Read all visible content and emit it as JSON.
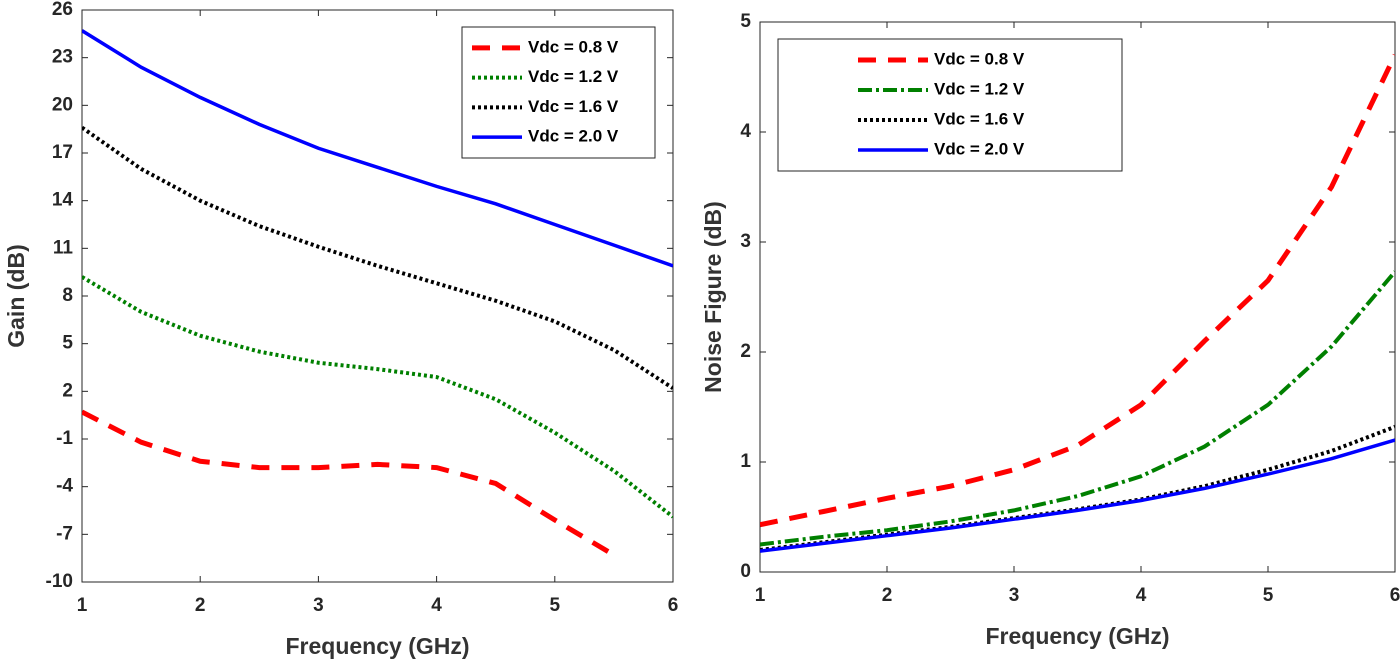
{
  "chart_data": [
    {
      "type": "line",
      "xlabel": "Frequency (GHz)",
      "ylabel": "Gain (dB)",
      "x": [
        1,
        1.5,
        2,
        2.5,
        3,
        3.5,
        4,
        4.5,
        5,
        5.5,
        6
      ],
      "xlim": [
        1,
        6
      ],
      "xticks": [
        1,
        2,
        3,
        4,
        5,
        6
      ],
      "ylim": [
        -10,
        26
      ],
      "yticks": [
        -10,
        -7,
        -4,
        -1,
        2,
        5,
        8,
        11,
        14,
        17,
        20,
        23,
        26
      ],
      "legend": "upper right",
      "series": [
        {
          "name": "Vdc = 0.8 V",
          "color": "#ff0000",
          "linestyle": "dashed",
          "values": [
            0.7,
            -1.2,
            -2.4,
            -2.8,
            -2.8,
            -2.6,
            -2.8,
            -3.8,
            -6.1,
            -8.3,
            null
          ]
        },
        {
          "name": "Vdc = 1.2 V",
          "color": "#008000",
          "linestyle": "dotted",
          "values": [
            9.2,
            7.0,
            5.5,
            4.5,
            3.8,
            3.4,
            2.9,
            1.5,
            -0.6,
            -3.0,
            -5.9
          ]
        },
        {
          "name": "Vdc = 1.6 V",
          "color": "#000000",
          "linestyle": "dotted",
          "values": [
            18.6,
            16.0,
            14.0,
            12.4,
            11.1,
            9.9,
            8.8,
            7.7,
            6.4,
            4.6,
            2.2
          ]
        },
        {
          "name": "Vdc = 2.0 V",
          "color": "#0000ff",
          "linestyle": "solid",
          "values": [
            24.7,
            22.4,
            20.5,
            18.8,
            17.3,
            16.1,
            14.9,
            13.8,
            12.5,
            11.2,
            9.9
          ]
        }
      ]
    },
    {
      "type": "line",
      "xlabel": "Frequency (GHz)",
      "ylabel": "Noise Figure (dB)",
      "x": [
        1,
        1.5,
        2,
        2.5,
        3,
        3.5,
        4,
        4.5,
        5,
        5.5,
        6
      ],
      "xlim": [
        1,
        6
      ],
      "xticks": [
        1,
        2,
        3,
        4,
        5,
        6
      ],
      "ylim": [
        0,
        5
      ],
      "yticks": [
        0,
        1,
        2,
        3,
        4,
        5
      ],
      "legend": "upper left",
      "series": [
        {
          "name": "Vdc = 0.8 V",
          "color": "#ff0000",
          "linestyle": "dashed",
          "values": [
            0.43,
            0.55,
            0.67,
            0.78,
            0.93,
            1.15,
            1.52,
            2.1,
            2.65,
            3.5,
            4.7
          ]
        },
        {
          "name": "Vdc = 1.2 V",
          "color": "#008000",
          "linestyle": "dashdot",
          "values": [
            0.25,
            0.32,
            0.38,
            0.46,
            0.56,
            0.69,
            0.87,
            1.14,
            1.52,
            2.05,
            2.73
          ]
        },
        {
          "name": "Vdc = 1.6 V",
          "color": "#000000",
          "linestyle": "dotted",
          "values": [
            0.2,
            0.27,
            0.34,
            0.41,
            0.49,
            0.57,
            0.66,
            0.78,
            0.93,
            1.1,
            1.32
          ]
        },
        {
          "name": "Vdc = 2.0 V",
          "color": "#0000ff",
          "linestyle": "solid",
          "values": [
            0.19,
            0.26,
            0.33,
            0.4,
            0.48,
            0.56,
            0.65,
            0.76,
            0.89,
            1.03,
            1.2
          ]
        }
      ]
    }
  ]
}
